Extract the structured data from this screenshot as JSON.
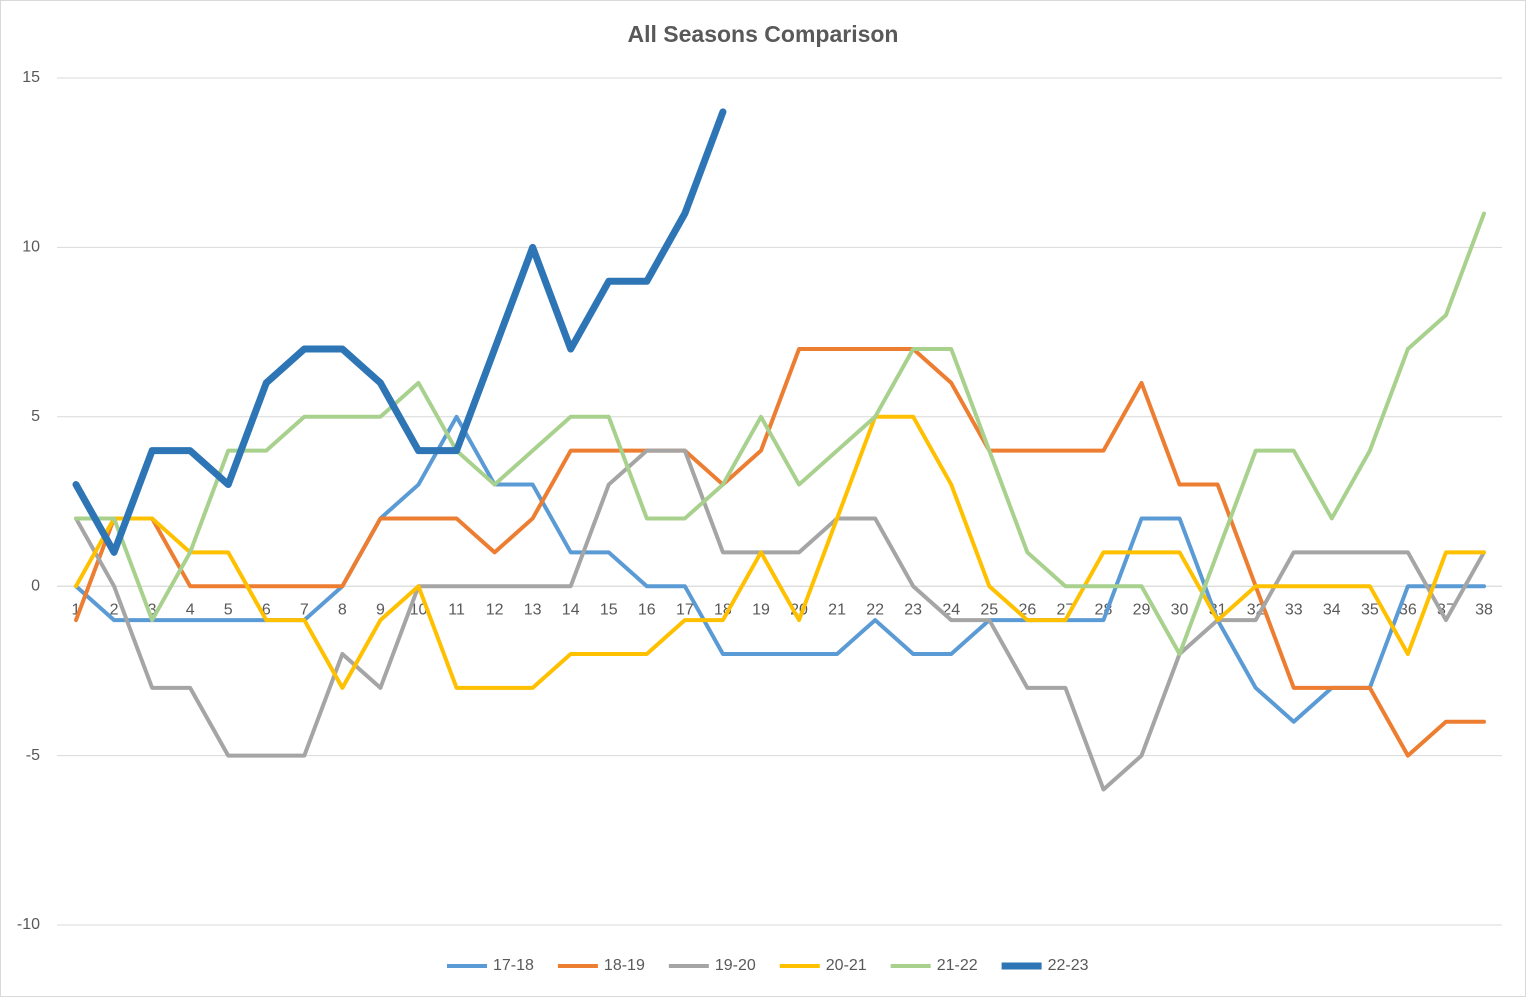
{
  "chart_data": {
    "type": "line",
    "title": "All Seasons Comparison",
    "categories": [
      1,
      2,
      3,
      4,
      5,
      6,
      7,
      8,
      9,
      10,
      11,
      12,
      13,
      14,
      15,
      16,
      17,
      18,
      19,
      20,
      21,
      22,
      23,
      24,
      25,
      26,
      27,
      28,
      29,
      30,
      31,
      32,
      33,
      34,
      35,
      36,
      37,
      38
    ],
    "series": [
      {
        "name": "17-18",
        "color": "#5b9bd5",
        "linewidth": 4,
        "values": [
          0,
          -1,
          -1,
          -1,
          -1,
          -1,
          -1,
          0,
          2,
          3,
          5,
          3,
          3,
          1,
          1,
          0,
          0,
          -2,
          -2,
          -2,
          -2,
          -1,
          -2,
          -2,
          -1,
          -1,
          -1,
          -1,
          2,
          2,
          -1,
          -3,
          -4,
          -3,
          -3,
          0,
          0,
          0
        ]
      },
      {
        "name": "18-19",
        "color": "#ed7d31",
        "linewidth": 4,
        "values": [
          -1,
          2,
          2,
          0,
          0,
          0,
          0,
          0,
          2,
          2,
          2,
          1,
          2,
          4,
          4,
          4,
          4,
          3,
          4,
          7,
          7,
          7,
          7,
          6,
          4,
          4,
          4,
          4,
          6,
          3,
          3,
          0,
          -3,
          -3,
          -3,
          -5,
          -4,
          -4
        ]
      },
      {
        "name": "19-20",
        "color": "#a5a5a5",
        "linewidth": 4,
        "values": [
          2,
          0,
          -3,
          -3,
          -5,
          -5,
          -5,
          -2,
          -3,
          0,
          0,
          0,
          0,
          0,
          3,
          4,
          4,
          1,
          1,
          1,
          2,
          2,
          0,
          -1,
          -1,
          -3,
          -3,
          -6,
          -5,
          -2,
          -1,
          -1,
          1,
          1,
          1,
          1,
          -1,
          1
        ]
      },
      {
        "name": "20-21",
        "color": "#ffc000",
        "linewidth": 4,
        "values": [
          0,
          2,
          2,
          1,
          1,
          -1,
          -1,
          -3,
          -1,
          0,
          -3,
          -3,
          -3,
          -2,
          -2,
          -2,
          -1,
          -1,
          1,
          -1,
          2,
          5,
          5,
          3,
          0,
          -1,
          -1,
          1,
          1,
          1,
          -1,
          0,
          0,
          0,
          0,
          -2,
          1,
          1
        ]
      },
      {
        "name": "21-22",
        "color": "#a9d18e",
        "linewidth": 4,
        "values": [
          2,
          2,
          -1,
          1,
          4,
          4,
          5,
          5,
          5,
          6,
          4,
          3,
          4,
          5,
          5,
          2,
          2,
          3,
          5,
          3,
          4,
          5,
          7,
          7,
          4,
          1,
          0,
          0,
          0,
          -2,
          1,
          4,
          4,
          2,
          4,
          7,
          8,
          11
        ]
      },
      {
        "name": "22-23",
        "color": "#2e75b6",
        "linewidth": 7,
        "values": [
          3,
          1,
          4,
          4,
          3,
          6,
          7,
          7,
          6,
          4,
          4,
          7,
          10,
          7,
          9,
          9,
          11,
          14,
          null,
          null,
          null,
          null,
          null,
          null,
          null,
          null,
          null,
          null,
          null,
          null,
          null,
          null,
          null,
          null,
          null,
          null,
          null,
          null
        ]
      }
    ],
    "ylim": [
      -10,
      15
    ],
    "yticks": [
      -10,
      -5,
      0,
      5,
      10,
      15
    ],
    "grid": true,
    "legend": "bottom"
  }
}
